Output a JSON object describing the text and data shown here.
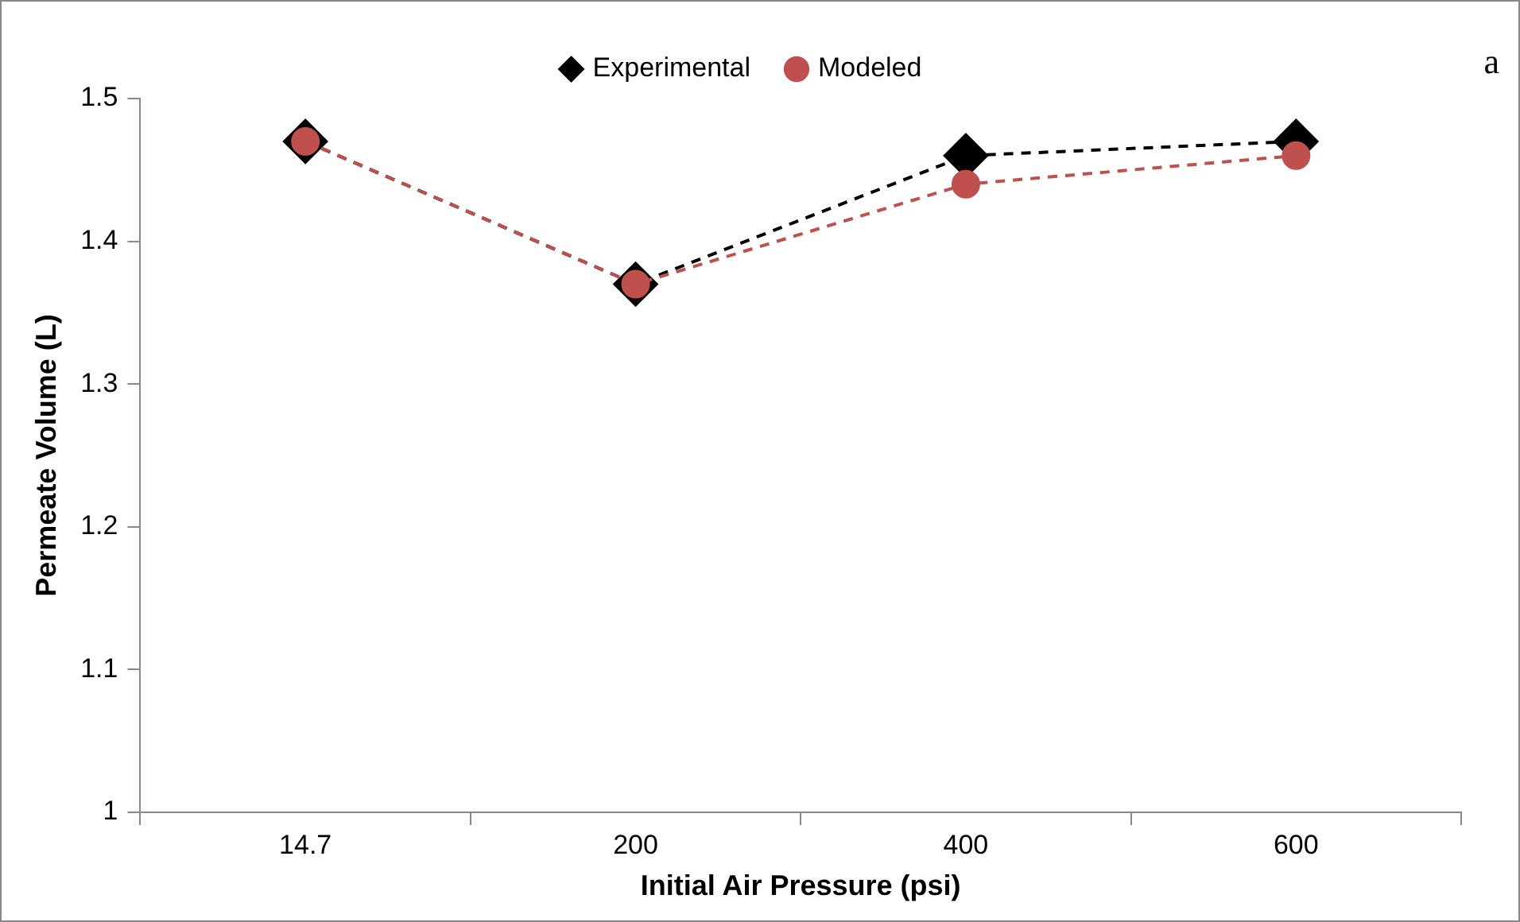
{
  "chart_data": {
    "type": "line",
    "xlabel": "Initial Air Pressure (psi)",
    "ylabel": "Permeate Volume (L)",
    "categories": [
      "14.7",
      "200",
      "400",
      "600"
    ],
    "series": [
      {
        "name": "Experimental",
        "color": "#000000",
        "marker": "diamond",
        "values": [
          1.47,
          1.37,
          1.46,
          1.47
        ]
      },
      {
        "name": "Modeled",
        "color": "#c0504d",
        "marker": "circle",
        "values": [
          1.47,
          1.37,
          1.44,
          1.46
        ]
      }
    ],
    "ylim": [
      1,
      1.5
    ],
    "yticks": [
      1,
      1.1,
      1.2,
      1.3,
      1.4,
      1.5
    ],
    "grid": false,
    "legend": "top",
    "line_style": "dashed",
    "annotations": [
      "a"
    ]
  }
}
